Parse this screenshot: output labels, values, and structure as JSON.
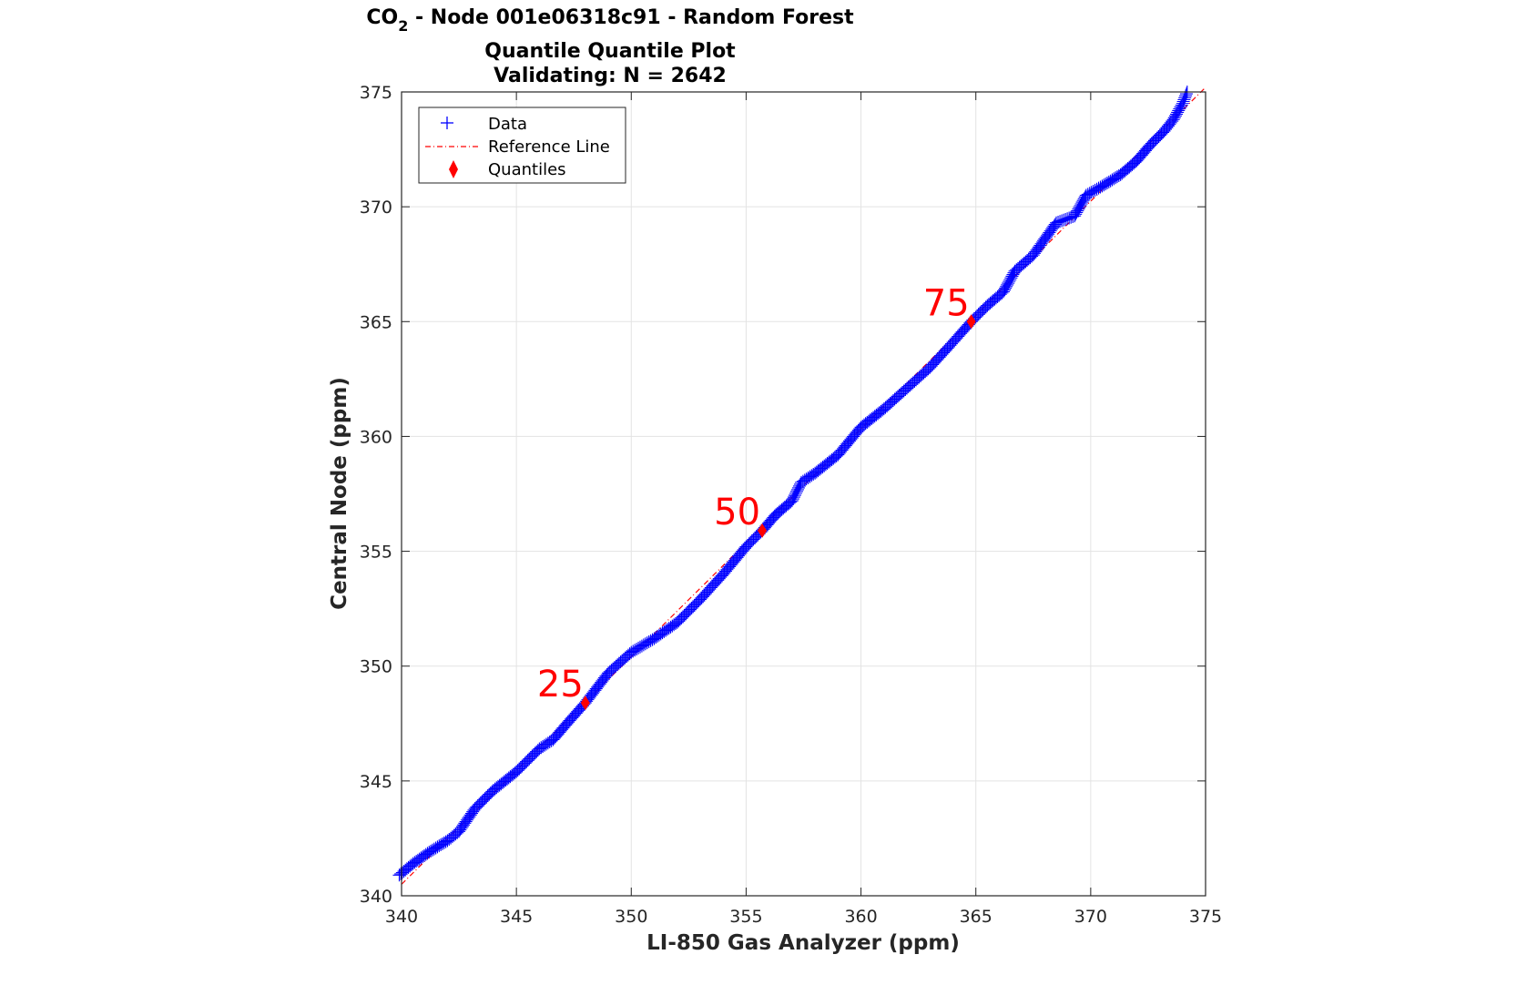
{
  "chart_data": {
    "type": "scatter",
    "title": {
      "co": "CO",
      "sub": "2",
      "rest": " - Node 001e06318c91 - Random Forest",
      "line2": "Quantile Quantile Plot",
      "line3": "Validating: N = 2642"
    },
    "xlabel": "LI-850 Gas Analyzer (ppm)",
    "ylabel": "Central Node (ppm)",
    "xlim": [
      340,
      375
    ],
    "ylim": [
      340,
      375
    ],
    "xticks": [
      340,
      345,
      350,
      355,
      360,
      365,
      370,
      375
    ],
    "yticks": [
      340,
      345,
      350,
      355,
      360,
      365,
      370,
      375
    ],
    "xtick_labels": [
      "340",
      "345",
      "350",
      "355",
      "360",
      "365",
      "370",
      "375"
    ],
    "ytick_labels": [
      "340",
      "345",
      "350",
      "355",
      "360",
      "365",
      "370",
      "375"
    ],
    "grid": true,
    "legend": {
      "position": "top-left",
      "entries": [
        "Data",
        "Reference Line",
        "Quantiles"
      ]
    },
    "colors": {
      "data": "#0000ff",
      "reference": "#ff0000",
      "quantiles": "#ff0000"
    },
    "data_curve": [
      [
        339.9,
        340.9
      ],
      [
        340.5,
        341.4
      ],
      [
        341.2,
        341.9
      ],
      [
        342.0,
        342.4
      ],
      [
        342.5,
        342.8
      ],
      [
        343.2,
        343.8
      ],
      [
        344.0,
        344.6
      ],
      [
        345.0,
        345.4
      ],
      [
        346.0,
        346.4
      ],
      [
        346.6,
        346.8
      ],
      [
        347.2,
        347.5
      ],
      [
        348.0,
        348.4
      ],
      [
        349.0,
        349.7
      ],
      [
        350.0,
        350.6
      ],
      [
        351.0,
        351.2
      ],
      [
        352.0,
        351.9
      ],
      [
        353.0,
        352.9
      ],
      [
        354.0,
        354.0
      ],
      [
        355.0,
        355.2
      ],
      [
        355.7,
        355.9
      ],
      [
        356.3,
        356.6
      ],
      [
        357.0,
        357.2
      ],
      [
        357.4,
        358.0
      ],
      [
        358.0,
        358.4
      ],
      [
        359.0,
        359.2
      ],
      [
        360.0,
        360.4
      ],
      [
        361.0,
        361.2
      ],
      [
        362.0,
        362.1
      ],
      [
        363.0,
        363.0
      ],
      [
        364.0,
        364.1
      ],
      [
        364.8,
        365.0
      ],
      [
        365.5,
        365.7
      ],
      [
        366.2,
        366.3
      ],
      [
        366.7,
        367.2
      ],
      [
        367.5,
        367.9
      ],
      [
        368.0,
        368.6
      ],
      [
        368.5,
        369.3
      ],
      [
        369.3,
        369.6
      ],
      [
        369.8,
        370.5
      ],
      [
        370.5,
        370.9
      ],
      [
        371.3,
        371.4
      ],
      [
        372.0,
        372.0
      ],
      [
        372.6,
        372.7
      ],
      [
        373.2,
        373.3
      ],
      [
        373.6,
        373.8
      ],
      [
        374.0,
        374.5
      ],
      [
        374.2,
        375.0
      ]
    ],
    "reference_line": [
      [
        340.0,
        340.5
      ],
      [
        375.0,
        375.2
      ]
    ],
    "quantiles": [
      {
        "label": "25",
        "x": 348.0,
        "y": 348.4
      },
      {
        "label": "50",
        "x": 355.7,
        "y": 355.9
      },
      {
        "label": "75",
        "x": 364.8,
        "y": 365.0
      }
    ]
  }
}
